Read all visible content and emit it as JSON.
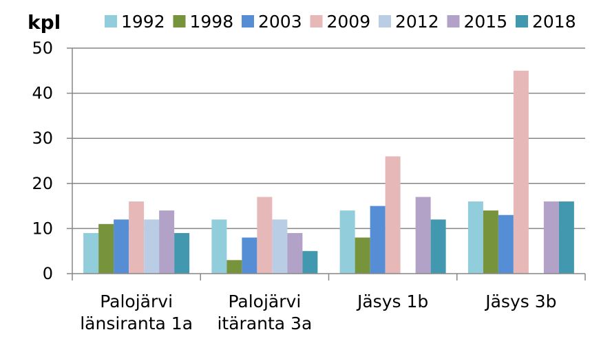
{
  "chart_data": {
    "type": "bar",
    "title": "",
    "xlabel": "",
    "ylabel": "kpl",
    "ylim": [
      0,
      50
    ],
    "yticks": [
      0,
      10,
      20,
      30,
      40,
      50
    ],
    "grid": true,
    "legend_position": "top",
    "categories": [
      [
        "Palojärvi",
        "länsiranta 1a"
      ],
      [
        "Palojärvi",
        "itäranta 3a"
      ],
      [
        "Jäsys 1b"
      ],
      [
        "Jäsys 3b"
      ]
    ],
    "series": [
      {
        "name": "1992",
        "color": "#92cddc",
        "values": [
          9,
          12,
          14,
          16
        ]
      },
      {
        "name": "1998",
        "color": "#77933c",
        "values": [
          11,
          3,
          8,
          14
        ]
      },
      {
        "name": "2003",
        "color": "#558ed5",
        "values": [
          12,
          8,
          15,
          13
        ]
      },
      {
        "name": "2009",
        "color": "#e6b9b8",
        "values": [
          16,
          17,
          26,
          45
        ]
      },
      {
        "name": "2012",
        "color": "#b9cde5",
        "values": [
          12,
          12,
          null,
          null
        ]
      },
      {
        "name": "2015",
        "color": "#b3a2c7",
        "values": [
          14,
          9,
          17,
          16
        ]
      },
      {
        "name": "2018",
        "color": "#4198af",
        "values": [
          9,
          5,
          12,
          16
        ]
      }
    ]
  }
}
